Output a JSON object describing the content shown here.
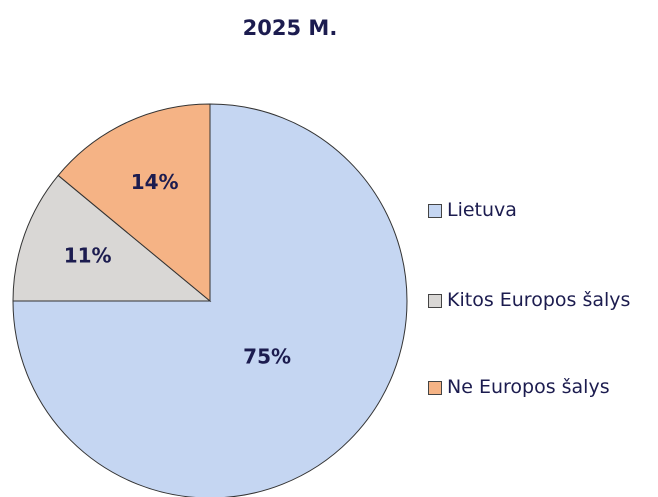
{
  "chart_data": {
    "type": "pie",
    "title": "2025 M.",
    "categories": [
      "Lietuva",
      "Kitos Europos šalys",
      "Ne Europos šalys"
    ],
    "values": [
      75,
      11,
      14
    ],
    "value_labels": [
      "75%",
      "11%",
      "14%"
    ],
    "colors": [
      "#c5d6f2",
      "#d9d7d5",
      "#f5b385"
    ],
    "legend": "right"
  }
}
